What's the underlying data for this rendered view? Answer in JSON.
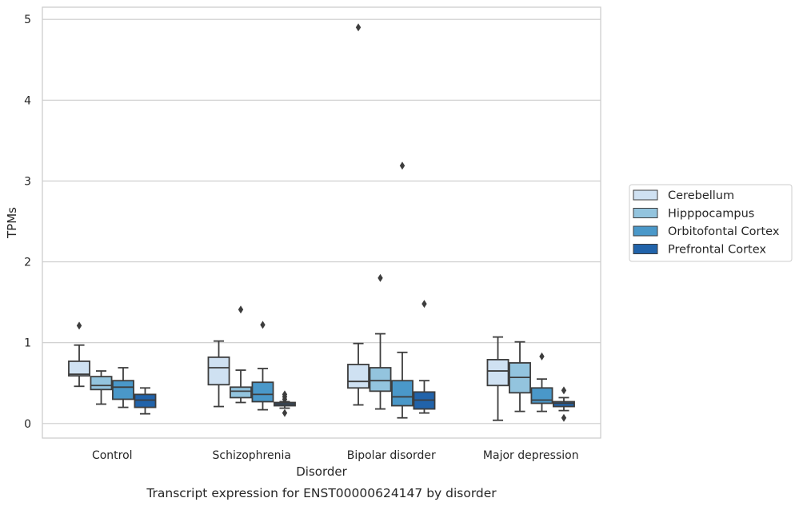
{
  "chart_data": {
    "type": "box",
    "title": "",
    "caption": "Transcript expression for ENST00000624147 by disorder",
    "xlabel": "Disorder",
    "ylabel": "TPMs",
    "ylim": [
      -0.18,
      5.15
    ],
    "yticks": [
      0,
      1,
      2,
      3,
      4,
      5
    ],
    "grid": "horizontal",
    "legend_position": "right",
    "categories": [
      "Control",
      "Schizophrenia",
      "Bipolar disorder",
      "Major depression"
    ],
    "series": [
      {
        "name": "Cerebellum",
        "color": "#cfe1f2",
        "boxes": [
          {
            "whislo": 0.46,
            "q1": 0.59,
            "med": 0.61,
            "q3": 0.77,
            "whishi": 0.97,
            "fliers": [
              1.21
            ]
          },
          {
            "whislo": 0.21,
            "q1": 0.48,
            "med": 0.69,
            "q3": 0.82,
            "whishi": 1.02,
            "fliers": []
          },
          {
            "whislo": 0.23,
            "q1": 0.44,
            "med": 0.52,
            "q3": 0.73,
            "whishi": 0.99,
            "fliers": [
              4.9
            ]
          },
          {
            "whislo": 0.04,
            "q1": 0.47,
            "med": 0.65,
            "q3": 0.79,
            "whishi": 1.07,
            "fliers": []
          }
        ]
      },
      {
        "name": "Hipppocampus",
        "color": "#93c4de",
        "boxes": [
          {
            "whislo": 0.24,
            "q1": 0.42,
            "med": 0.47,
            "q3": 0.58,
            "whishi": 0.65,
            "fliers": []
          },
          {
            "whislo": 0.26,
            "q1": 0.32,
            "med": 0.4,
            "q3": 0.45,
            "whishi": 0.66,
            "fliers": [
              1.41
            ]
          },
          {
            "whislo": 0.18,
            "q1": 0.4,
            "med": 0.53,
            "q3": 0.69,
            "whishi": 1.11,
            "fliers": [
              1.8
            ]
          },
          {
            "whislo": 0.15,
            "q1": 0.38,
            "med": 0.57,
            "q3": 0.75,
            "whishi": 1.01,
            "fliers": []
          }
        ]
      },
      {
        "name": "Orbitofontal Cortex",
        "color": "#4a98c9",
        "boxes": [
          {
            "whislo": 0.2,
            "q1": 0.3,
            "med": 0.45,
            "q3": 0.53,
            "whishi": 0.69,
            "fliers": []
          },
          {
            "whislo": 0.17,
            "q1": 0.27,
            "med": 0.36,
            "q3": 0.51,
            "whishi": 0.68,
            "fliers": [
              1.22
            ]
          },
          {
            "whislo": 0.07,
            "q1": 0.22,
            "med": 0.33,
            "q3": 0.53,
            "whishi": 0.88,
            "fliers": [
              3.19
            ]
          },
          {
            "whislo": 0.15,
            "q1": 0.25,
            "med": 0.29,
            "q3": 0.44,
            "whishi": 0.55,
            "fliers": [
              0.83
            ]
          }
        ]
      },
      {
        "name": "Prefrontal Cortex",
        "color": "#2163aa",
        "boxes": [
          {
            "whislo": 0.12,
            "q1": 0.2,
            "med": 0.29,
            "q3": 0.36,
            "whishi": 0.44,
            "fliers": []
          },
          {
            "whislo": 0.19,
            "q1": 0.22,
            "med": 0.24,
            "q3": 0.26,
            "whishi": 0.27,
            "fliers": [
              0.13,
              0.3,
              0.33,
              0.36
            ]
          },
          {
            "whislo": 0.13,
            "q1": 0.18,
            "med": 0.29,
            "q3": 0.39,
            "whishi": 0.53,
            "fliers": [
              1.48
            ]
          },
          {
            "whislo": 0.16,
            "q1": 0.21,
            "med": 0.25,
            "q3": 0.27,
            "whishi": 0.32,
            "fliers": [
              0.07,
              0.41
            ]
          }
        ]
      }
    ]
  }
}
